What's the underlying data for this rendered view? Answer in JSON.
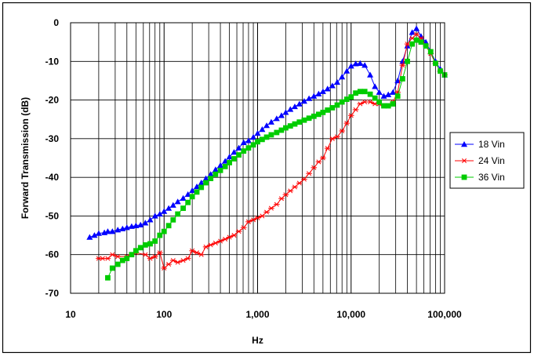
{
  "chart_data": {
    "type": "line",
    "title": "",
    "xlabel": "Hz",
    "ylabel": "Forward Transmission (dB)",
    "x_scale": "log",
    "xlim": [
      10,
      100000
    ],
    "ylim": [
      -70,
      0
    ],
    "x_ticks": [
      10,
      100,
      1000,
      10000,
      100000
    ],
    "x_tick_labels": [
      "10",
      "100",
      "1,000",
      "10,000",
      "100,000"
    ],
    "y_ticks": [
      0,
      -10,
      -20,
      -30,
      -40,
      -50,
      -60,
      -70
    ],
    "y_tick_labels": [
      "0",
      "-10",
      "-20",
      "-30",
      "-40",
      "-50",
      "-60",
      "-70"
    ],
    "grid": true,
    "legend_position": "right",
    "series": [
      {
        "name": "18 Vin",
        "color": "#0000ff",
        "marker": "triangle",
        "points": [
          [
            16,
            -55.5
          ],
          [
            18,
            -55
          ],
          [
            20,
            -54.5
          ],
          [
            23,
            -54.3
          ],
          [
            25,
            -54
          ],
          [
            28,
            -54
          ],
          [
            32,
            -53.6
          ],
          [
            36,
            -53.3
          ],
          [
            40,
            -53
          ],
          [
            45,
            -52.7
          ],
          [
            50,
            -52.5
          ],
          [
            56,
            -52.3
          ],
          [
            63,
            -51.8
          ],
          [
            71,
            -51
          ],
          [
            80,
            -50
          ],
          [
            90,
            -49.5
          ],
          [
            100,
            -48.8
          ],
          [
            112,
            -48
          ],
          [
            125,
            -47.2
          ],
          [
            140,
            -46.3
          ],
          [
            160,
            -45.4
          ],
          [
            180,
            -44.4
          ],
          [
            200,
            -43.4
          ],
          [
            224,
            -42.4
          ],
          [
            250,
            -41.4
          ],
          [
            280,
            -40.3
          ],
          [
            315,
            -39.2
          ],
          [
            355,
            -38
          ],
          [
            400,
            -36.9
          ],
          [
            450,
            -35.8
          ],
          [
            500,
            -34.7
          ],
          [
            560,
            -33.5
          ],
          [
            630,
            -32.4
          ],
          [
            710,
            -31
          ],
          [
            800,
            -30.5
          ],
          [
            900,
            -29.6
          ],
          [
            1000,
            -28.6
          ],
          [
            1120,
            -27.6
          ],
          [
            1250,
            -26.6
          ],
          [
            1400,
            -25.7
          ],
          [
            1600,
            -24.8
          ],
          [
            1800,
            -24
          ],
          [
            2000,
            -23.2
          ],
          [
            2240,
            -22.4
          ],
          [
            2500,
            -21.7
          ],
          [
            2800,
            -21
          ],
          [
            3150,
            -20.3
          ],
          [
            3550,
            -19.6
          ],
          [
            4000,
            -19
          ],
          [
            4500,
            -18.4
          ],
          [
            5000,
            -17.8
          ],
          [
            5600,
            -17.1
          ],
          [
            6300,
            -16.3
          ],
          [
            7100,
            -15.4
          ],
          [
            8000,
            -14
          ],
          [
            9000,
            -12.5
          ],
          [
            10000,
            -11.2
          ],
          [
            11200,
            -10.6
          ],
          [
            12500,
            -10.5
          ],
          [
            14000,
            -11
          ],
          [
            16000,
            -13.5
          ],
          [
            18000,
            -16.5
          ],
          [
            20000,
            -18
          ],
          [
            22400,
            -19
          ],
          [
            25000,
            -18.6
          ],
          [
            28000,
            -18
          ],
          [
            31500,
            -15
          ],
          [
            35500,
            -10
          ],
          [
            40000,
            -6
          ],
          [
            45000,
            -2.5
          ],
          [
            50000,
            -1.5
          ],
          [
            56000,
            -3.5
          ],
          [
            63000,
            -5
          ],
          [
            71000,
            -7.5
          ],
          [
            80000,
            -10
          ],
          [
            90000,
            -12
          ],
          [
            100000,
            -13.5
          ]
        ]
      },
      {
        "name": "24 Vin",
        "color": "#ff0000",
        "marker": "star",
        "points": [
          [
            20,
            -61
          ],
          [
            22,
            -61
          ],
          [
            25,
            -61
          ],
          [
            28,
            -60
          ],
          [
            32,
            -60.5
          ],
          [
            40,
            -60.5
          ],
          [
            50,
            -59.5
          ],
          [
            63,
            -60
          ],
          [
            71,
            -61
          ],
          [
            80,
            -60.5
          ],
          [
            90,
            -59.5
          ],
          [
            100,
            -63.5
          ],
          [
            112,
            -62.5
          ],
          [
            125,
            -61.5
          ],
          [
            140,
            -62
          ],
          [
            160,
            -61.5
          ],
          [
            180,
            -61
          ],
          [
            200,
            -59
          ],
          [
            224,
            -59.5
          ],
          [
            250,
            -60
          ],
          [
            280,
            -58
          ],
          [
            315,
            -57.5
          ],
          [
            355,
            -57
          ],
          [
            400,
            -56.5
          ],
          [
            450,
            -56
          ],
          [
            500,
            -55.5
          ],
          [
            560,
            -55
          ],
          [
            630,
            -54
          ],
          [
            710,
            -53
          ],
          [
            800,
            -51.5
          ],
          [
            900,
            -51
          ],
          [
            1000,
            -50.5
          ],
          [
            1120,
            -50
          ],
          [
            1250,
            -49
          ],
          [
            1400,
            -48
          ],
          [
            1600,
            -47
          ],
          [
            1800,
            -45.5
          ],
          [
            2000,
            -44.5
          ],
          [
            2240,
            -43.5
          ],
          [
            2500,
            -42.5
          ],
          [
            2800,
            -41.5
          ],
          [
            3150,
            -40.5
          ],
          [
            3550,
            -39
          ],
          [
            4000,
            -37.5
          ],
          [
            4500,
            -36
          ],
          [
            5000,
            -35
          ],
          [
            5600,
            -32.5
          ],
          [
            6300,
            -30
          ],
          [
            7100,
            -29.5
          ],
          [
            8000,
            -28
          ],
          [
            9000,
            -26
          ],
          [
            10000,
            -24
          ],
          [
            11200,
            -22.5
          ],
          [
            12500,
            -21
          ],
          [
            14000,
            -20.5
          ],
          [
            16000,
            -20.5
          ],
          [
            18000,
            -21
          ],
          [
            20000,
            -21
          ],
          [
            22400,
            -21.5
          ],
          [
            25000,
            -21.5
          ],
          [
            28000,
            -20.5
          ],
          [
            31500,
            -18
          ],
          [
            35500,
            -11
          ],
          [
            40000,
            -5.5
          ],
          [
            45000,
            -4
          ],
          [
            50000,
            -3
          ],
          [
            56000,
            -4
          ],
          [
            63000,
            -6
          ],
          [
            71000,
            -8
          ],
          [
            80000,
            -10.5
          ],
          [
            90000,
            -12.5
          ],
          [
            100000,
            -13.5
          ]
        ]
      },
      {
        "name": "36 Vin",
        "color": "#00cc00",
        "marker": "square",
        "points": [
          [
            25,
            -66
          ],
          [
            28,
            -63.5
          ],
          [
            32,
            -62.5
          ],
          [
            36,
            -61.5
          ],
          [
            40,
            -61
          ],
          [
            45,
            -60
          ],
          [
            50,
            -59
          ],
          [
            56,
            -58.2
          ],
          [
            63,
            -57.5
          ],
          [
            71,
            -57.2
          ],
          [
            80,
            -56.5
          ],
          [
            90,
            -55
          ],
          [
            100,
            -54
          ],
          [
            112,
            -52.5
          ],
          [
            125,
            -51
          ],
          [
            140,
            -49.5
          ],
          [
            160,
            -48
          ],
          [
            180,
            -46.5
          ],
          [
            200,
            -45
          ],
          [
            224,
            -43.8
          ],
          [
            250,
            -42.6
          ],
          [
            280,
            -41.4
          ],
          [
            315,
            -40.3
          ],
          [
            355,
            -39.2
          ],
          [
            400,
            -38.2
          ],
          [
            450,
            -37.2
          ],
          [
            500,
            -36.2
          ],
          [
            560,
            -35.2
          ],
          [
            630,
            -34.2
          ],
          [
            710,
            -33.2
          ],
          [
            800,
            -32.4
          ],
          [
            900,
            -31.6
          ],
          [
            1000,
            -30.8
          ],
          [
            1120,
            -30.2
          ],
          [
            1250,
            -29.6
          ],
          [
            1400,
            -29
          ],
          [
            1600,
            -28.4
          ],
          [
            1800,
            -27.8
          ],
          [
            2000,
            -27.2
          ],
          [
            2240,
            -26.7
          ],
          [
            2500,
            -26.2
          ],
          [
            2800,
            -25.7
          ],
          [
            3150,
            -25.2
          ],
          [
            3550,
            -24.7
          ],
          [
            4000,
            -24.2
          ],
          [
            4500,
            -23.7
          ],
          [
            5000,
            -23.2
          ],
          [
            5600,
            -22.6
          ],
          [
            6300,
            -22
          ],
          [
            7100,
            -21.3
          ],
          [
            8000,
            -20.5
          ],
          [
            9000,
            -19.8
          ],
          [
            10000,
            -19.2
          ],
          [
            11200,
            -18.2
          ],
          [
            12500,
            -17.8
          ],
          [
            14000,
            -17.8
          ],
          [
            16000,
            -18.5
          ],
          [
            18000,
            -19.5
          ],
          [
            20000,
            -20.5
          ],
          [
            22400,
            -21.5
          ],
          [
            25000,
            -21.5
          ],
          [
            28000,
            -21
          ],
          [
            31500,
            -19
          ],
          [
            35500,
            -14.5
          ],
          [
            40000,
            -10
          ],
          [
            45000,
            -5.5
          ],
          [
            50000,
            -4.5
          ],
          [
            56000,
            -5
          ],
          [
            63000,
            -6
          ],
          [
            71000,
            -7.5
          ],
          [
            80000,
            -10.5
          ],
          [
            90000,
            -12.5
          ],
          [
            100000,
            -13.5
          ]
        ]
      }
    ]
  }
}
